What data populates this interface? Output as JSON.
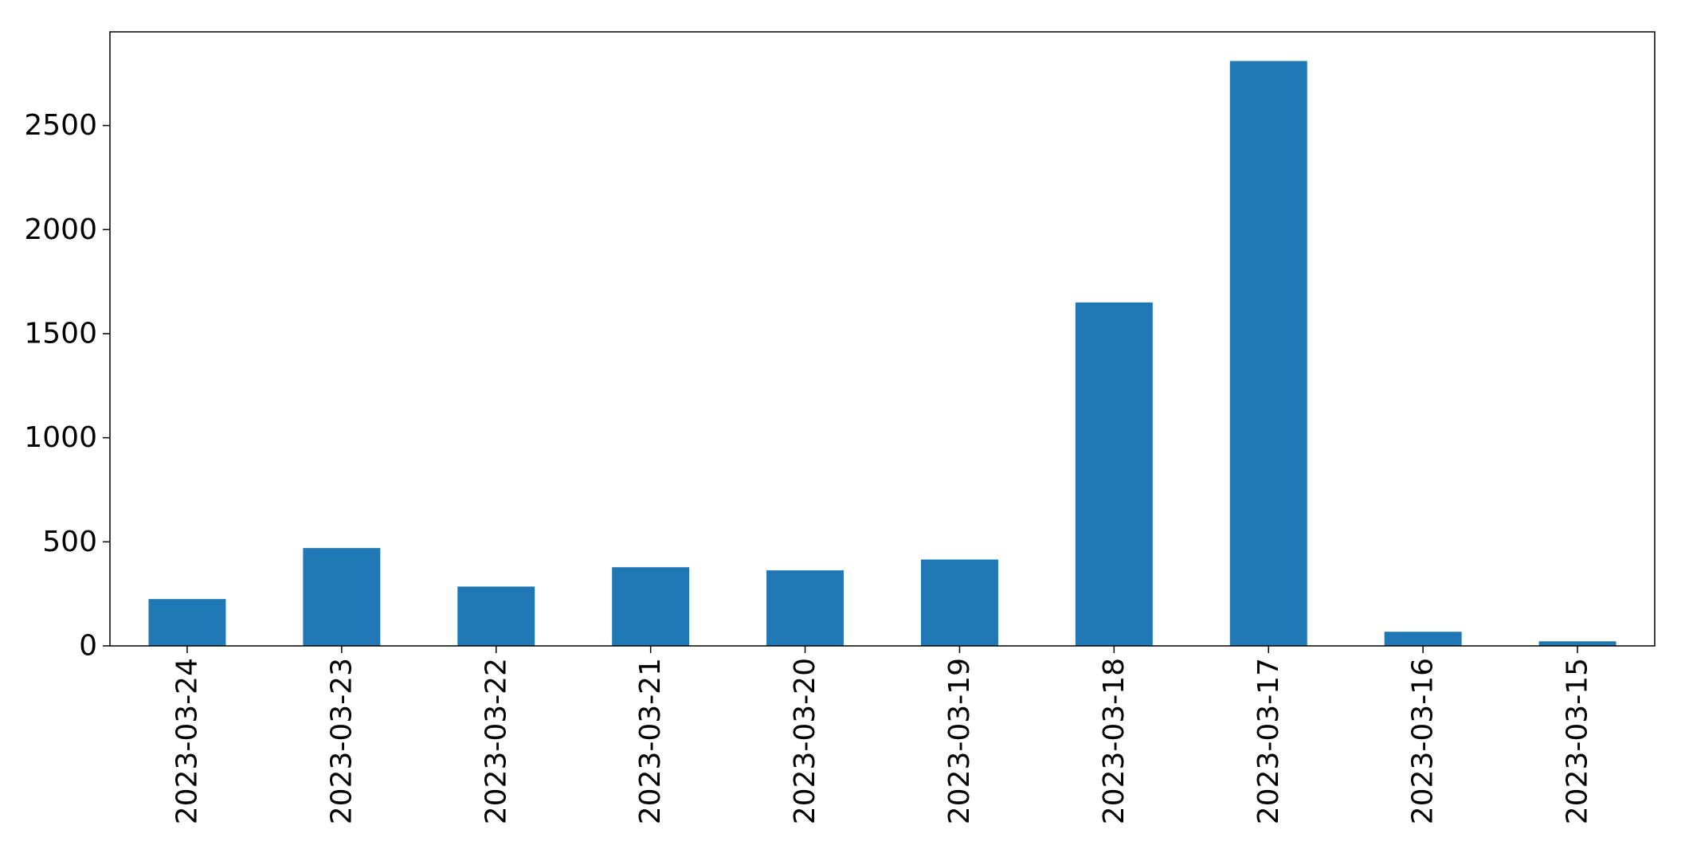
{
  "chart_data": {
    "type": "bar",
    "categories": [
      "2023-03-24",
      "2023-03-23",
      "2023-03-22",
      "2023-03-21",
      "2023-03-20",
      "2023-03-19",
      "2023-03-18",
      "2023-03-17",
      "2023-03-16",
      "2023-03-15"
    ],
    "series": [
      {
        "values": [
          225,
          470,
          285,
          378,
          363,
          415,
          1650,
          2810,
          68,
          22
        ]
      }
    ],
    "y_ticks": [
      0,
      500,
      1000,
      1500,
      2000,
      2500
    ],
    "ylim": [
      0,
      2950
    ],
    "title": "",
    "xlabel": "",
    "ylabel": "",
    "grid": false,
    "legend": "none",
    "x_tick_rotation": "vertical",
    "bar_color": "#1f77b4",
    "axis_color": "#000000"
  }
}
